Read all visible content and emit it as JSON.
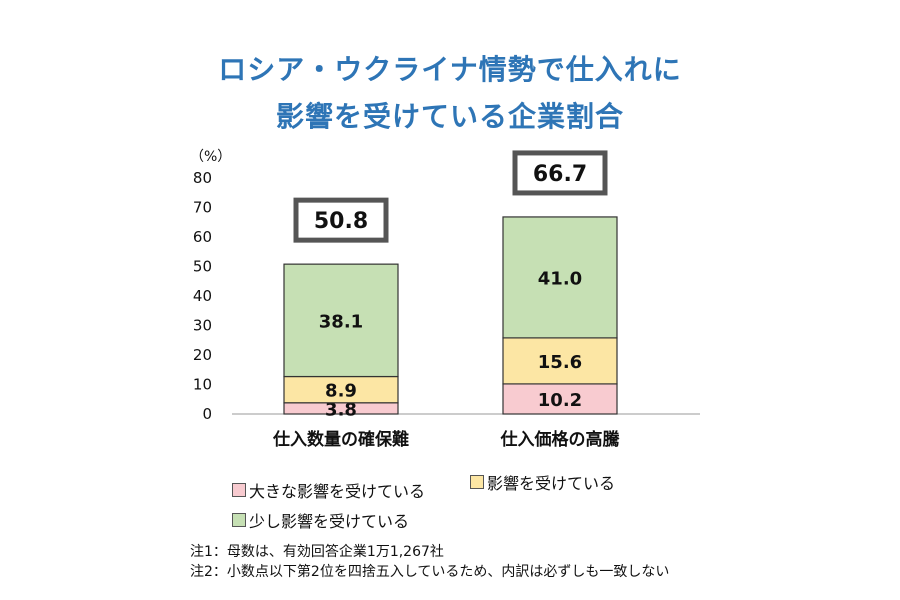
{
  "title_line1": "ロシア・ウクライナ情勢で仕入れに",
  "title_line2": "影響を受けている企業割合",
  "chart_data": {
    "type": "bar",
    "stacked": true,
    "unit_label": "（%）",
    "ylim": [
      0,
      80
    ],
    "yticks": [
      0,
      10,
      20,
      30,
      40,
      50,
      60,
      70,
      80
    ],
    "categories": [
      "仕入数量の確保難",
      "仕入価格の高騰"
    ],
    "totals": [
      "50.8",
      "66.7"
    ],
    "series": [
      {
        "name": "大きな影響を受けている",
        "values": [
          3.8,
          10.2
        ],
        "labels": [
          "3.8",
          "10.2"
        ],
        "color": "#F8CBD0"
      },
      {
        "name": "影響を受けている",
        "values": [
          8.9,
          15.6
        ],
        "labels": [
          "8.9",
          "15.6"
        ],
        "color": "#FCE6A4"
      },
      {
        "name": "少し影響を受けている",
        "values": [
          38.1,
          41.0
        ],
        "labels": [
          "38.1",
          "41.0"
        ],
        "color": "#C6E0B4"
      }
    ],
    "grid": false,
    "legend_position": "bottom"
  },
  "notes": [
    "注1：母数は、有効回答企業1万1,267社",
    "注2：小数点以下第2位を四捨五入しているため、内訳は必ずしも一致しない"
  ]
}
